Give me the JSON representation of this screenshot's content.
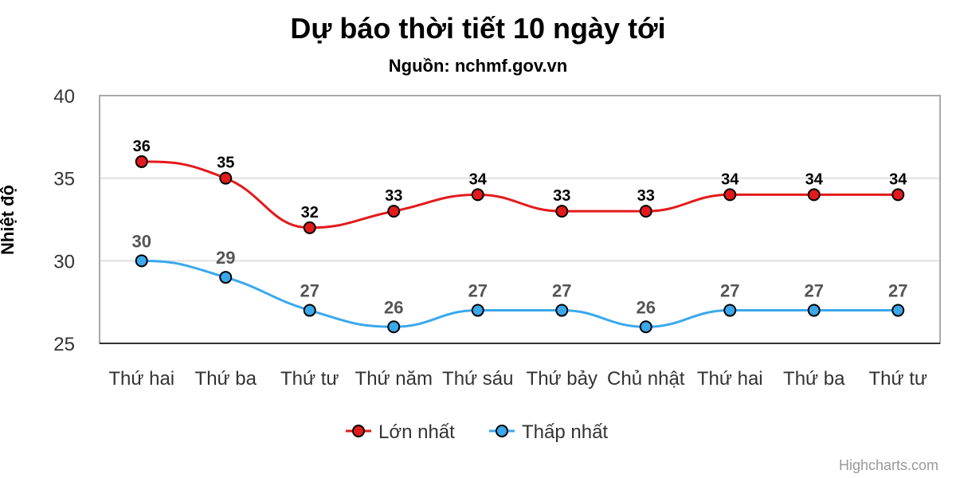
{
  "chart_data": {
    "type": "line",
    "title": "Dự báo thời tiết 10 ngày tới",
    "subtitle": "Nguồn: nchmf.gov.vn",
    "xlabel": "",
    "ylabel": "Nhiệt độ",
    "ylim": [
      25,
      40
    ],
    "yticks": [
      25,
      30,
      35,
      40
    ],
    "grid": true,
    "legend_position": "bottom-center",
    "categories": [
      "Thứ hai",
      "Thứ ba",
      "Thứ tư",
      "Thứ năm",
      "Thứ sáu",
      "Thứ bảy",
      "Chủ nhật",
      "Thứ hai",
      "Thứ ba",
      "Thứ tư"
    ],
    "series": [
      {
        "name": "Lớn nhất",
        "color": "#e31a1c",
        "values": [
          36,
          35,
          32,
          33,
          34,
          33,
          33,
          34,
          34,
          34
        ]
      },
      {
        "name": "Thấp nhất",
        "color": "#3aa8ec",
        "values": [
          30,
          29,
          27,
          26,
          27,
          27,
          26,
          27,
          27,
          27
        ]
      }
    ],
    "credits": "Highcharts.com"
  }
}
